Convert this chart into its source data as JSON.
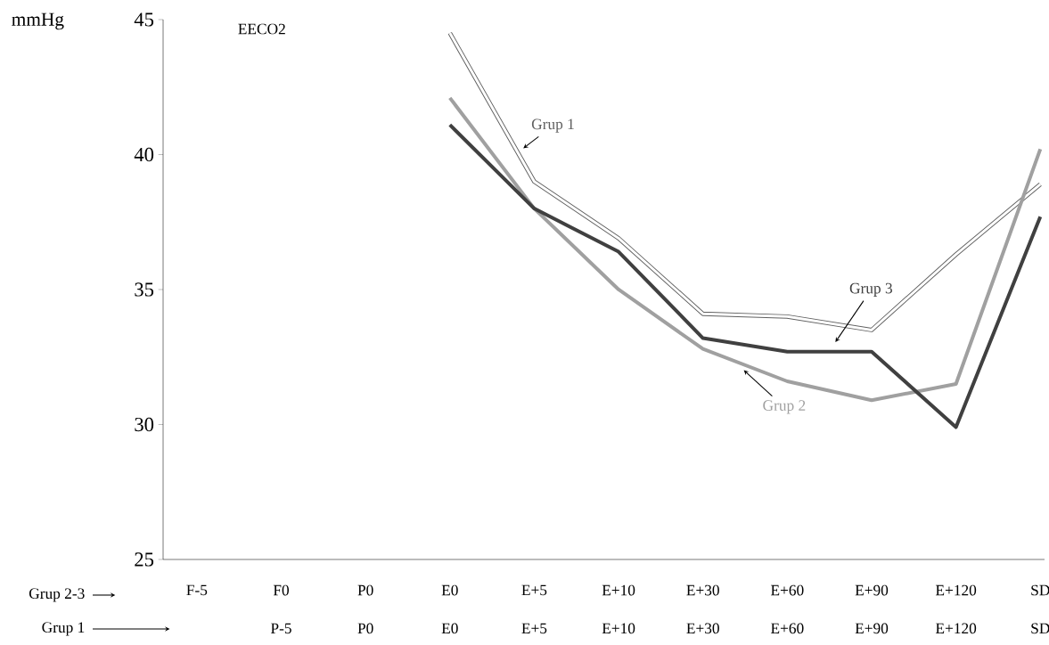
{
  "chart_data": {
    "type": "line",
    "title": "EECO2",
    "ylabel": "mmHg",
    "categories": [
      "F-5",
      "F0",
      "P0",
      "E0",
      "E+5",
      "E+10",
      "E+30",
      "E+60",
      "E+90",
      "E+120",
      "SD"
    ],
    "series": [
      {
        "name": "Grup 1",
        "color": "#606060",
        "values": [
          null,
          null,
          null,
          44.5,
          39.0,
          36.9,
          34.1,
          34.0,
          33.5,
          36.3,
          38.9
        ]
      },
      {
        "name": "Grup 2",
        "color": "#a0a0a0",
        "values": [
          null,
          null,
          null,
          42.1,
          38.0,
          35.0,
          32.8,
          31.6,
          30.9,
          31.5,
          40.2
        ]
      },
      {
        "name": "Grup 3",
        "color": "#404040",
        "values": [
          null,
          null,
          null,
          41.1,
          38.0,
          36.4,
          33.2,
          32.7,
          32.7,
          29.9,
          37.7
        ]
      }
    ],
    "ylim": [
      25,
      45
    ],
    "yticks": [
      25,
      30,
      35,
      40,
      45
    ],
    "annotations": [
      "Grup 2-3",
      "Grup 1",
      "P-5",
      "P0",
      "E0",
      "E+5",
      "E+10",
      "E+30",
      "E+60",
      "E+90",
      "E+120",
      "SD"
    ]
  }
}
